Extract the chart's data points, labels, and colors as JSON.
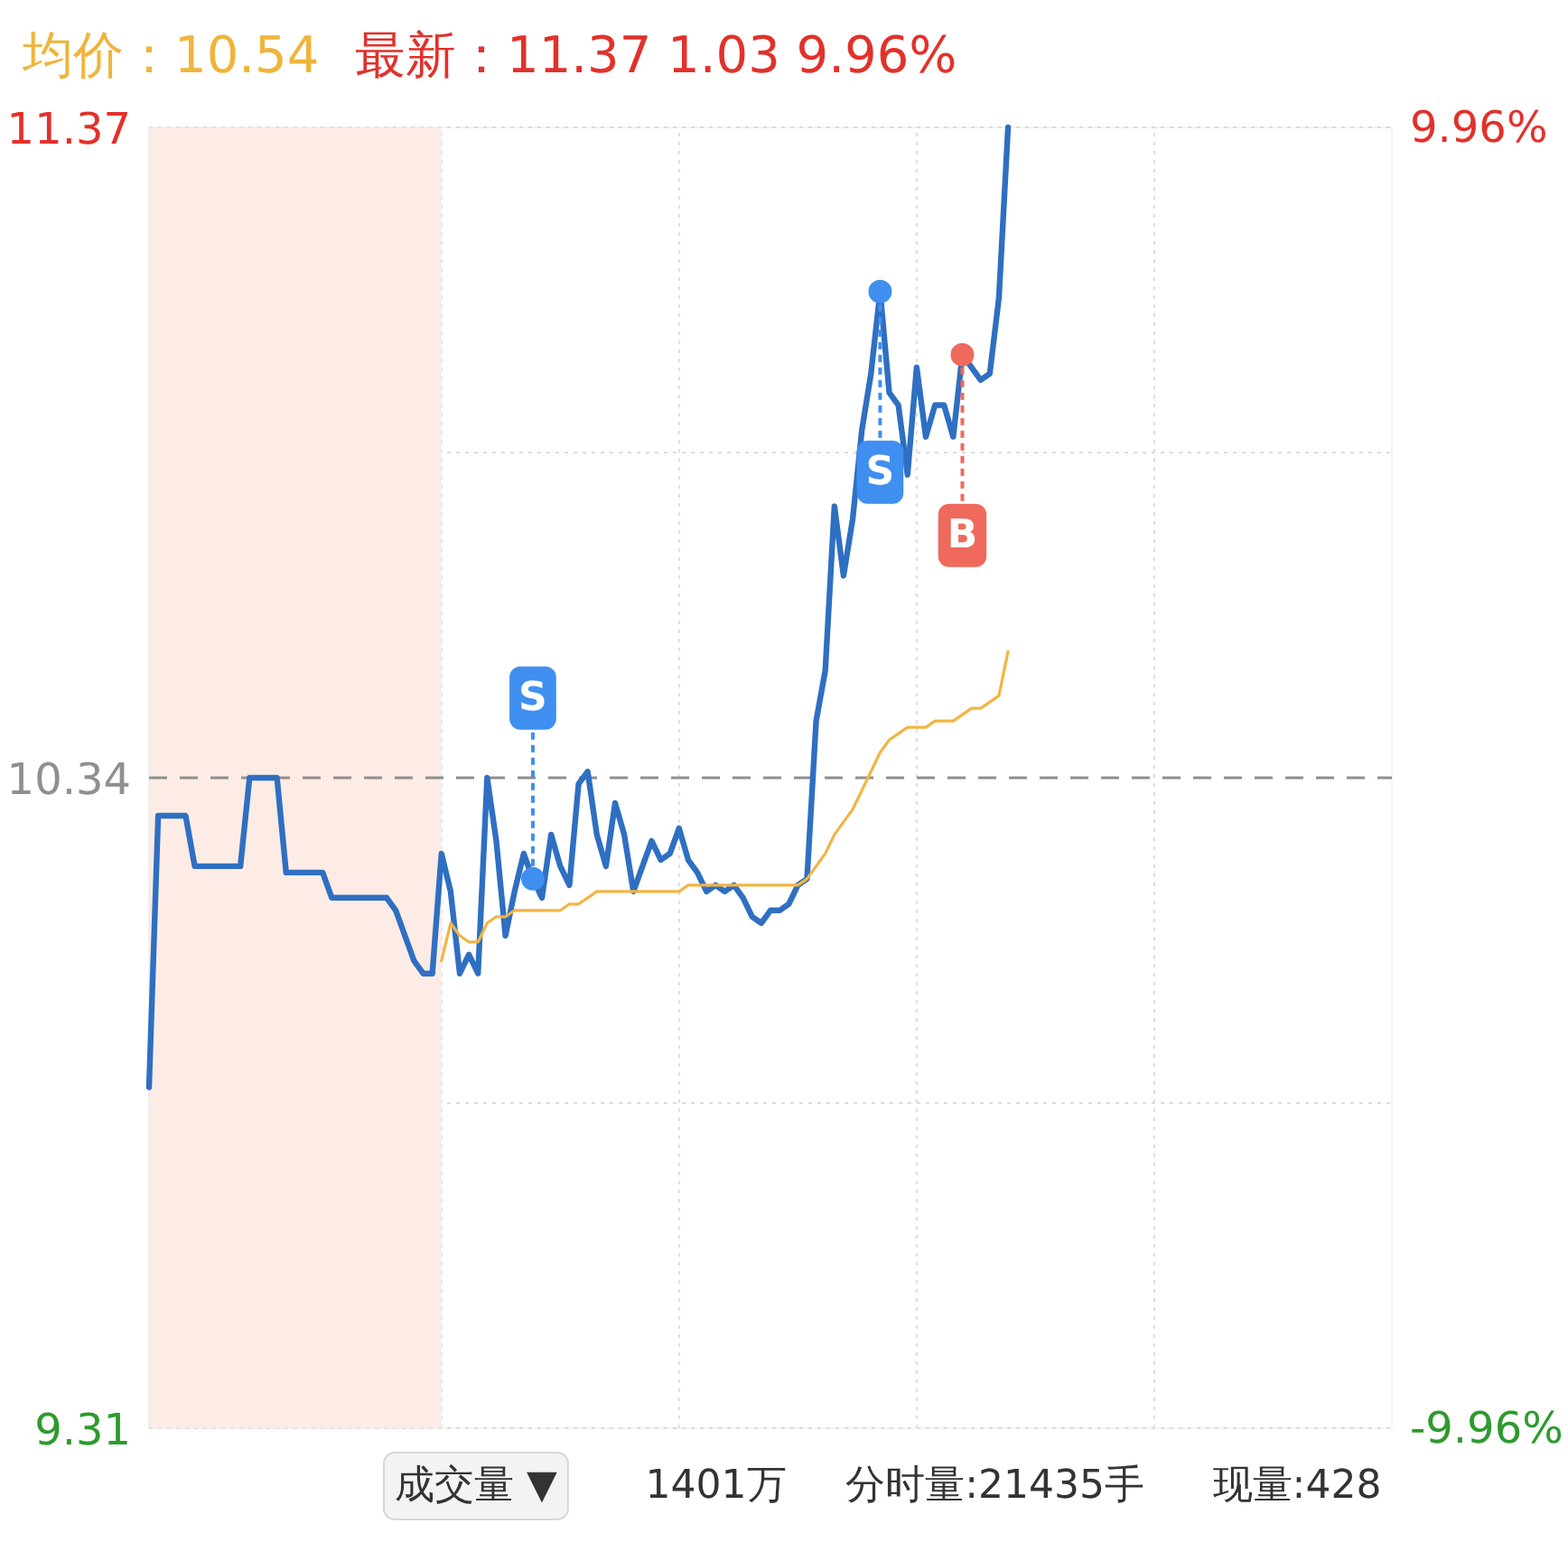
{
  "chart_data": {
    "type": "line",
    "title": "均价：10.54",
    "subtitle": "最新：11.37 1.03 9.96%",
    "annotations": [
      "成交量 ▼",
      "1401万",
      "分时量:21435手",
      "现量:428"
    ],
    "categories": [
      null,
      null,
      null,
      null,
      null,
      null,
      null,
      null,
      null,
      null,
      null,
      null,
      null,
      null,
      null,
      null,
      null,
      null,
      null,
      null,
      null,
      null,
      null,
      null,
      null,
      null,
      null,
      null,
      null,
      null,
      null,
      null,
      null,
      null,
      null,
      null,
      null,
      null,
      null,
      null,
      null,
      null,
      null,
      null,
      null,
      null,
      null,
      null,
      null,
      null,
      null,
      null,
      null,
      null,
      null,
      null,
      null,
      null,
      null,
      null,
      null,
      null,
      null,
      null,
      null,
      null,
      null,
      null,
      null,
      null,
      null,
      null,
      null,
      null,
      null,
      null,
      null,
      null,
      null,
      null,
      null,
      null,
      null,
      null,
      null,
      null,
      null,
      null,
      null,
      null,
      null,
      null,
      null,
      null,
      null,
      null,
      null,
      null,
      null,
      null,
      null,
      null,
      null,
      null,
      null,
      null,
      null,
      null,
      null,
      null,
      null,
      null,
      null,
      null,
      null,
      null,
      null,
      null,
      null,
      null,
      null,
      null,
      null,
      null,
      null,
      null,
      null,
      null,
      null,
      null,
      null,
      null,
      null,
      null,
      null,
      null,
      null
    ],
    "ylim": [
      9.31,
      11.37
    ],
    "yticks": [
      9.31,
      {
        "value": 9.825,
        "label": null
      },
      {
        "value": 10.855,
        "label": null
      },
      11.37
    ],
    "y2lim": [
      -9.96,
      9.96
    ],
    "y2ticks": [
      {
        "value": -9.96,
        "label": "-9.96%"
      },
      {
        "value": 9.96,
        "label": "9.96%"
      }
    ],
    "grid": "y",
    "ref_lines": [
      {
        "axis": "y",
        "value": 10.34,
        "label": "10.34",
        "color": "#8f8f8f",
        "line_style": "dashed"
      }
    ],
    "series": [
      {
        "color": "#2f6fc2",
        "values": [
          9.85,
          10.28,
          10.28,
          10.28,
          10.28,
          10.2,
          10.2,
          10.2,
          10.2,
          10.2,
          10.2,
          10.34,
          10.34,
          10.34,
          10.34,
          10.19,
          10.19,
          10.19,
          10.19,
          10.19,
          10.15,
          10.15,
          10.15,
          10.15,
          10.15,
          10.15,
          10.15,
          10.13,
          10.09,
          10.05,
          10.03,
          10.03,
          10.22,
          10.16,
          10.03,
          10.06,
          10.03,
          10.34,
          10.24,
          10.09,
          10.16,
          10.22,
          10.18,
          10.15,
          10.25,
          10.2,
          10.17,
          10.33,
          10.35,
          10.25,
          10.2,
          10.3,
          10.25,
          10.16,
          10.2,
          10.24,
          10.21,
          10.22,
          10.26,
          10.21,
          10.19,
          10.16,
          10.17,
          10.16,
          10.17,
          10.15,
          10.12,
          10.11,
          10.13,
          10.13,
          10.14,
          10.17,
          10.18,
          10.43,
          10.51,
          10.77,
          10.66,
          10.75,
          10.89,
          10.98,
          11.11,
          10.95,
          10.93,
          10.82,
          10.99,
          10.88,
          10.93,
          10.93,
          10.88,
          11.01,
          10.99,
          10.97,
          10.98,
          11.1,
          11.37,
          null,
          null,
          null,
          null,
          null,
          null,
          null,
          null,
          null,
          null,
          null,
          null,
          null,
          null,
          null,
          null,
          null,
          null,
          null,
          null,
          null,
          null,
          null,
          null,
          null,
          null,
          null,
          null,
          null,
          null,
          null,
          null,
          null,
          null,
          null,
          null,
          null,
          null,
          null,
          null,
          null,
          null
        ]
      },
      {
        "color": "#f2b544",
        "values": [
          null,
          null,
          null,
          null,
          null,
          null,
          null,
          null,
          null,
          null,
          null,
          null,
          null,
          null,
          null,
          null,
          null,
          null,
          null,
          null,
          null,
          null,
          null,
          null,
          null,
          null,
          null,
          null,
          null,
          null,
          null,
          null,
          10.05,
          10.11,
          10.09,
          10.08,
          10.08,
          10.11,
          10.12,
          10.12,
          10.13,
          10.13,
          10.13,
          10.13,
          10.13,
          10.13,
          10.14,
          10.14,
          10.15,
          10.16,
          10.16,
          10.16,
          10.16,
          10.16,
          10.16,
          10.16,
          10.16,
          10.16,
          10.16,
          10.17,
          10.17,
          10.17,
          10.17,
          10.17,
          10.17,
          10.17,
          10.17,
          10.17,
          10.17,
          10.17,
          10.17,
          10.17,
          10.18,
          10.2,
          10.22,
          10.25,
          10.27,
          10.29,
          10.32,
          10.35,
          10.38,
          10.4,
          10.41,
          10.42,
          10.42,
          10.42,
          10.43,
          10.43,
          10.43,
          10.44,
          10.45,
          10.45,
          10.46,
          10.47,
          10.54,
          null,
          null,
          null,
          null,
          null,
          null,
          null,
          null,
          null,
          null,
          null,
          null,
          null,
          null,
          null,
          null,
          null,
          null,
          null,
          null,
          null,
          null,
          null,
          null,
          null,
          null,
          null,
          null,
          null,
          null,
          null,
          null,
          null,
          null,
          null,
          null,
          null,
          null,
          null,
          null,
          null,
          null
        ]
      },
      {
        "type": "scatter",
        "color": "#3f8ff0",
        "marker": "circle",
        "values": [
          null,
          null,
          null,
          null,
          null,
          null,
          null,
          null,
          null,
          null,
          null,
          null,
          null,
          null,
          null,
          null,
          null,
          null,
          null,
          null,
          null,
          null,
          null,
          null,
          null,
          null,
          null,
          null,
          null,
          null,
          null,
          null,
          null,
          null,
          null,
          null,
          null,
          null,
          null,
          null,
          null,
          null,
          10.18,
          null,
          null,
          null,
          null,
          null,
          null,
          null,
          null,
          null,
          null,
          null,
          null,
          null,
          null,
          null,
          null,
          null,
          null,
          null,
          null,
          null,
          null,
          null,
          null,
          null,
          null,
          null,
          null,
          null,
          null,
          null,
          null,
          null,
          null,
          null,
          null,
          null,
          11.11,
          null,
          null,
          null,
          null,
          null,
          null,
          null,
          null,
          null,
          null,
          null,
          null,
          null,
          null,
          null,
          null,
          null,
          null,
          null,
          null,
          null,
          null,
          null,
          null,
          null,
          null,
          null,
          null,
          null,
          null,
          null,
          null,
          null,
          null,
          null,
          null,
          null,
          null,
          null,
          null,
          null,
          null,
          null,
          null,
          null,
          null,
          null,
          null,
          null,
          null,
          null,
          null,
          null,
          null,
          null,
          null
        ],
        "value_labels": [
          null,
          null,
          null,
          null,
          null,
          null,
          null,
          null,
          null,
          null,
          null,
          null,
          null,
          null,
          null,
          null,
          null,
          null,
          null,
          null,
          null,
          null,
          null,
          null,
          null,
          null,
          null,
          null,
          null,
          null,
          null,
          null,
          null,
          null,
          null,
          null,
          null,
          null,
          null,
          null,
          null,
          null,
          "S",
          null,
          null,
          null,
          null,
          null,
          null,
          null,
          null,
          null,
          null,
          null,
          null,
          null,
          null,
          null,
          null,
          null,
          null,
          null,
          null,
          null,
          null,
          null,
          null,
          null,
          null,
          null,
          null,
          null,
          null,
          null,
          null,
          null,
          null,
          null,
          null,
          null,
          "S",
          null,
          null,
          null,
          null,
          null,
          null,
          null,
          null,
          null,
          null,
          null,
          null,
          null,
          null,
          null,
          null,
          null,
          null,
          null,
          null,
          null,
          null,
          null,
          null,
          null,
          null,
          null,
          null,
          null,
          null,
          null,
          null,
          null,
          null,
          null,
          null,
          null,
          null,
          null,
          null,
          null,
          null,
          null,
          null,
          null,
          null,
          null,
          null,
          null,
          null,
          null,
          null,
          null,
          null,
          null,
          null
        ]
      },
      {
        "type": "scatter",
        "color": "#ef6a5c",
        "marker": "circle",
        "values": [
          null,
          null,
          null,
          null,
          null,
          null,
          null,
          null,
          null,
          null,
          null,
          null,
          null,
          null,
          null,
          null,
          null,
          null,
          null,
          null,
          null,
          null,
          null,
          null,
          null,
          null,
          null,
          null,
          null,
          null,
          null,
          null,
          null,
          null,
          null,
          null,
          null,
          null,
          null,
          null,
          null,
          null,
          null,
          null,
          null,
          null,
          null,
          null,
          null,
          null,
          null,
          null,
          null,
          null,
          null,
          null,
          null,
          null,
          null,
          null,
          null,
          null,
          null,
          null,
          null,
          null,
          null,
          null,
          null,
          null,
          null,
          null,
          null,
          null,
          null,
          null,
          null,
          null,
          null,
          null,
          null,
          null,
          null,
          null,
          null,
          null,
          null,
          null,
          null,
          11.01,
          null,
          null,
          null,
          null,
          null,
          null,
          null,
          null,
          null,
          null,
          null,
          null,
          null,
          null,
          null,
          null,
          null,
          null,
          null,
          null,
          null,
          null,
          null,
          null,
          null,
          null,
          null,
          null,
          null,
          null,
          null,
          null,
          null,
          null,
          null,
          null,
          null,
          null,
          null,
          null,
          null,
          null,
          null,
          null,
          null,
          null,
          null
        ],
        "value_labels": [
          null,
          null,
          null,
          null,
          null,
          null,
          null,
          null,
          null,
          null,
          null,
          null,
          null,
          null,
          null,
          null,
          null,
          null,
          null,
          null,
          null,
          null,
          null,
          null,
          null,
          null,
          null,
          null,
          null,
          null,
          null,
          null,
          null,
          null,
          null,
          null,
          null,
          null,
          null,
          null,
          null,
          null,
          null,
          null,
          null,
          null,
          null,
          null,
          null,
          null,
          null,
          null,
          null,
          null,
          null,
          null,
          null,
          null,
          null,
          null,
          null,
          null,
          null,
          null,
          null,
          null,
          null,
          null,
          null,
          null,
          null,
          null,
          null,
          null,
          null,
          null,
          null,
          null,
          null,
          null,
          null,
          null,
          null,
          null,
          null,
          null,
          null,
          null,
          null,
          "B",
          null,
          null,
          null,
          null,
          null,
          null,
          null,
          null,
          null,
          null,
          null,
          null,
          null,
          null,
          null,
          null,
          null,
          null,
          null,
          null,
          null,
          null,
          null,
          null,
          null,
          null,
          null,
          null,
          null,
          null,
          null,
          null,
          null,
          null,
          null,
          null,
          null,
          null,
          null,
          null,
          null,
          null,
          null,
          null,
          null,
          null,
          null
        ]
      }
    ]
  }
}
